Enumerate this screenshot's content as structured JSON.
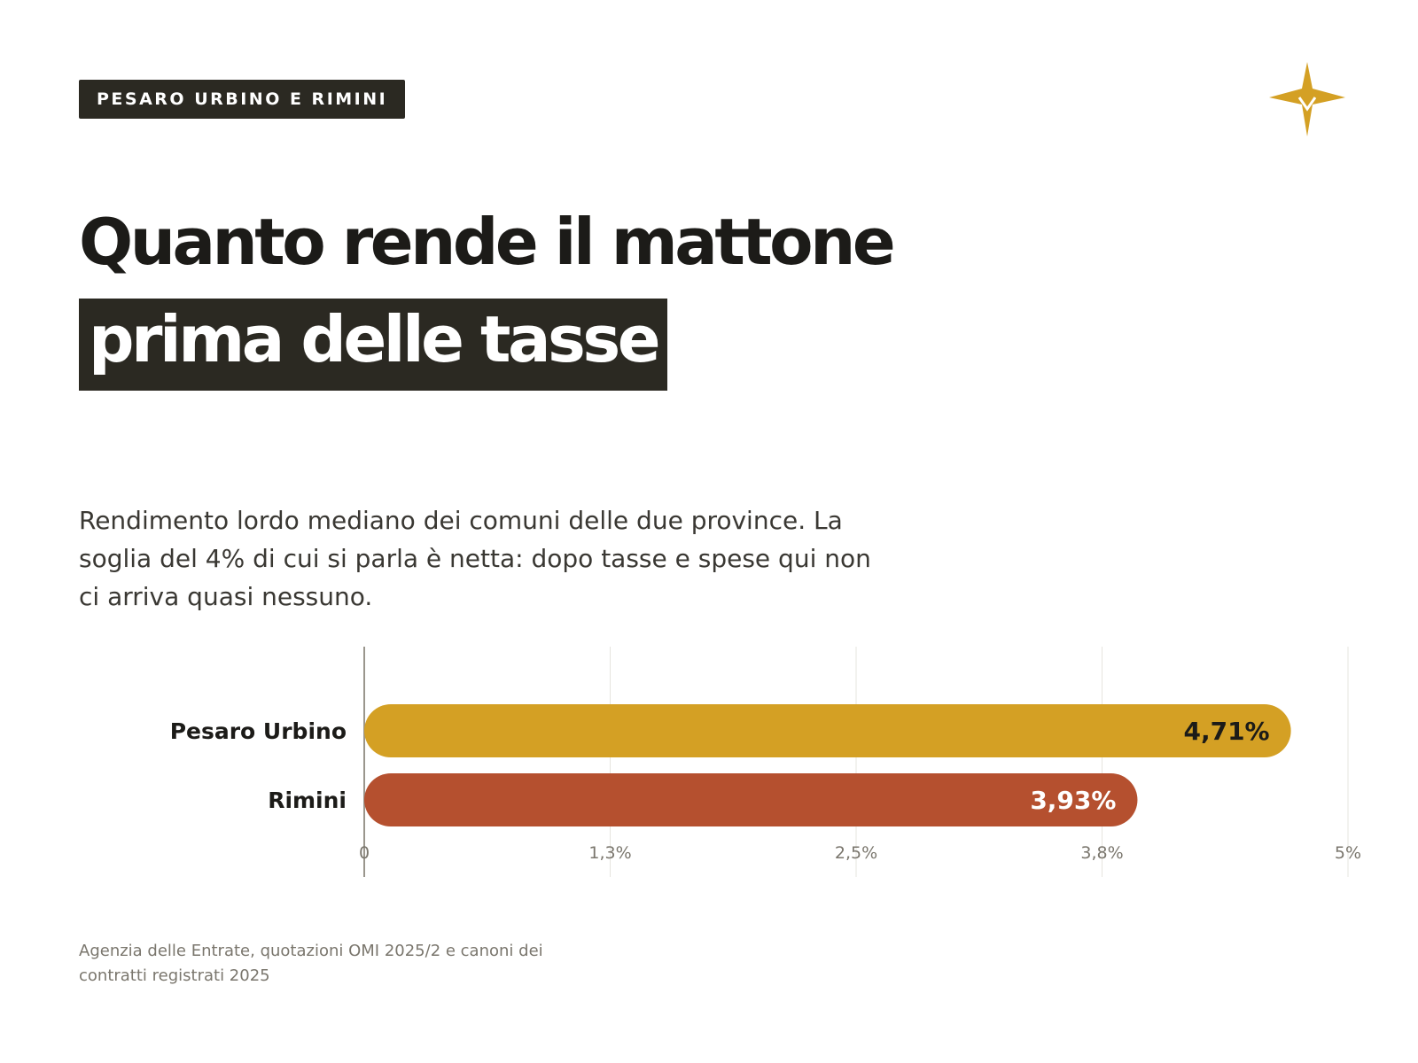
{
  "tag": "PESARO URBINO E RIMINI",
  "logo": {
    "icon": "compass-star-icon",
    "color": "#d4a024"
  },
  "headline": {
    "part1": "Quanto rende il mattone ",
    "highlight": "prima delle tasse"
  },
  "subtitle": "Rendimento lordo mediano dei comuni delle due province. La soglia del 4% di cui si parla è netta: dopo tasse e spese qui non ci arriva quasi nessuno.",
  "chart_data": {
    "type": "bar",
    "orientation": "horizontal",
    "categories": [
      "Pesaro Urbino",
      "Rimini"
    ],
    "values": [
      4.71,
      3.93
    ],
    "value_labels": [
      "4,71%",
      "3,93%"
    ],
    "colors": [
      "#d4a024",
      "#b5502f"
    ],
    "value_label_colors": [
      "#1c1b18",
      "#ffffff"
    ],
    "xlim": [
      0,
      5
    ],
    "ticks": [
      0,
      1.25,
      2.5,
      3.75,
      5
    ],
    "tick_labels": [
      "0",
      "1,3%",
      "2,5%",
      "3,8%",
      "5%"
    ],
    "grid": true
  },
  "source": "Agenzia delle Entrate, quotazioni OMI 2025/2 e canoni dei contratti registrati 2025"
}
